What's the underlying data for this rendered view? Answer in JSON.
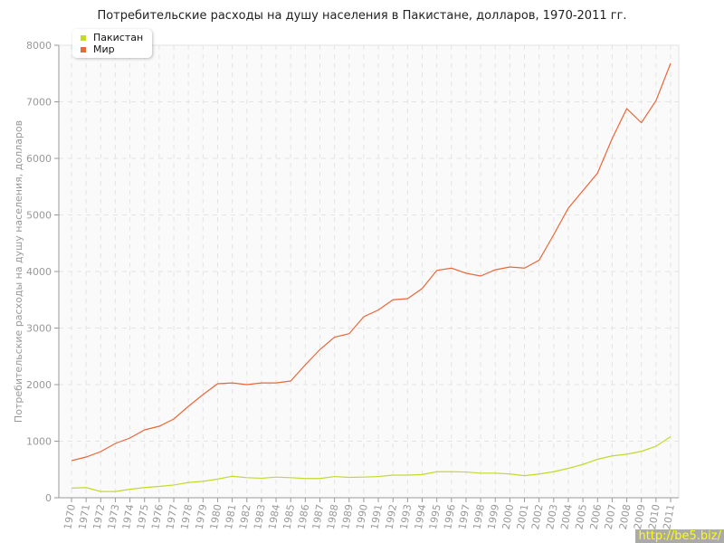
{
  "chart_data": {
    "type": "line",
    "title": "Потребительские расходы на душу населения в Пакистане, долларов, 1970-2011 гг.",
    "ylabel": "Потребительские расходы на душу населения, долларов",
    "xlabel": "",
    "ylim": [
      0,
      8000
    ],
    "yticks": [
      0,
      1000,
      2000,
      3000,
      4000,
      5000,
      6000,
      7000,
      8000
    ],
    "grid": true,
    "legend_position": "top-left",
    "x": [
      1970,
      1971,
      1972,
      1973,
      1974,
      1975,
      1976,
      1977,
      1978,
      1979,
      1980,
      1981,
      1982,
      1983,
      1984,
      1985,
      1986,
      1987,
      1988,
      1989,
      1990,
      1991,
      1992,
      1993,
      1994,
      1995,
      1996,
      1997,
      1998,
      1999,
      2000,
      2001,
      2002,
      2003,
      2004,
      2005,
      2006,
      2007,
      2008,
      2009,
      2010,
      2011
    ],
    "series": [
      {
        "name": "Пакистан",
        "color": "#c3d92f",
        "values": [
          170,
          180,
          110,
          110,
          150,
          180,
          200,
          225,
          270,
          290,
          330,
          380,
          355,
          345,
          365,
          355,
          340,
          340,
          375,
          360,
          365,
          375,
          400,
          400,
          410,
          460,
          460,
          455,
          435,
          435,
          420,
          390,
          420,
          460,
          520,
          590,
          680,
          740,
          770,
          820,
          910,
          1080
        ]
      },
      {
        "name": "Мир",
        "color": "#e8683a",
        "values": [
          656,
          720,
          816,
          960,
          1056,
          1200,
          1264,
          1392,
          1616,
          1824,
          2016,
          2030,
          2000,
          2030,
          2030,
          2064,
          2350,
          2620,
          2840,
          2900,
          3200,
          3320,
          3500,
          3520,
          3700,
          4020,
          4060,
          3970,
          3920,
          4030,
          4080,
          4060,
          4200,
          4650,
          5120,
          5430,
          5740,
          6350,
          6880,
          6630,
          7020,
          7680
        ]
      }
    ]
  },
  "watermark": "http://be5.biz/"
}
